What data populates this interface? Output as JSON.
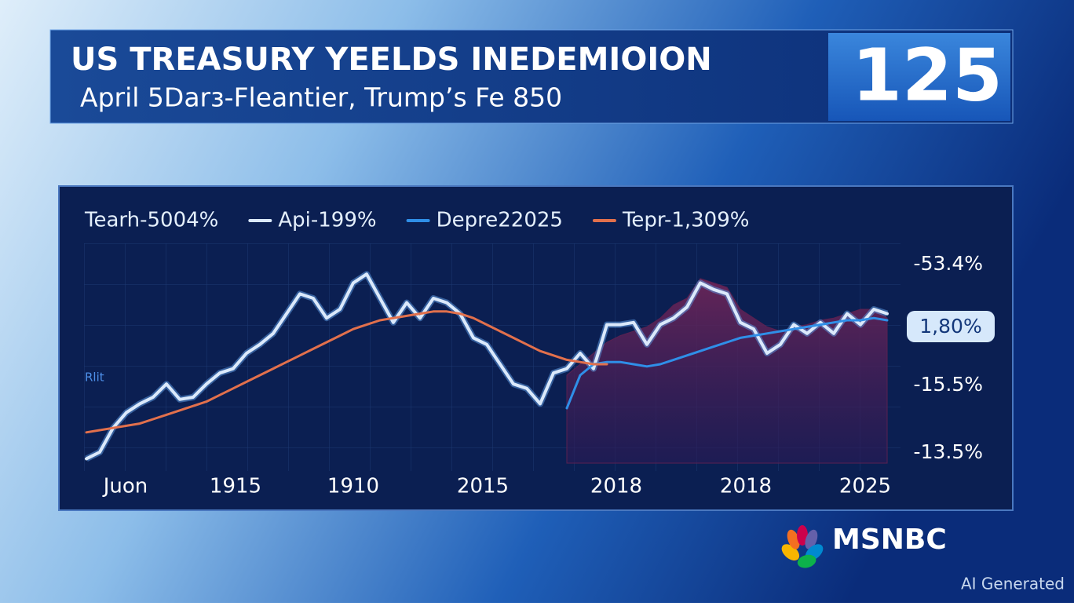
{
  "header": {
    "title": "US TREASURY YEELDS INEDEMIOION",
    "subtitle": "April 5Darɜ-Fleantier, Trump’s Fe 850",
    "badge": "125"
  },
  "chart_data": {
    "type": "line",
    "x": [
      0,
      1,
      2,
      3,
      4,
      5,
      6,
      7,
      8,
      9,
      10,
      11,
      12,
      13,
      14,
      15,
      16,
      17,
      18,
      19,
      20,
      21,
      22,
      23,
      24,
      25,
      26,
      27,
      28,
      29,
      30,
      31,
      32,
      33,
      34,
      35,
      36,
      37,
      38,
      39,
      40,
      41,
      42,
      43,
      44,
      45,
      46,
      47,
      48,
      49,
      50,
      51,
      52,
      53,
      54,
      55,
      56,
      57,
      58,
      59,
      60
    ],
    "xlim": [
      0,
      60
    ],
    "ylim": [
      0,
      100
    ],
    "x_labels": [
      "Juon",
      "1915",
      "1910",
      "2015",
      "2018",
      "2018",
      "2025"
    ],
    "y_labels": [
      "-53.4%",
      "-15.5%",
      "-13.5%"
    ],
    "callout": "1,80%",
    "side_label": "Rlit",
    "series": [
      {
        "name": "Tearh-5004%",
        "type": "area",
        "color": "#5a2150",
        "values": [
          null,
          null,
          null,
          null,
          null,
          null,
          null,
          null,
          null,
          null,
          null,
          null,
          null,
          null,
          null,
          null,
          null,
          null,
          null,
          null,
          null,
          null,
          null,
          null,
          null,
          null,
          null,
          null,
          null,
          null,
          null,
          null,
          null,
          null,
          null,
          null,
          40,
          45,
          50,
          55,
          58,
          60,
          62,
          66,
          72,
          75,
          84,
          82,
          80,
          70,
          66,
          62,
          60,
          62,
          63,
          65,
          66,
          68,
          70,
          70,
          66
        ]
      },
      {
        "name": "Api-199%",
        "type": "line",
        "color": "#dbe9fb",
        "values": [
          2,
          5,
          16,
          23,
          27,
          30,
          36,
          29,
          30,
          36,
          41,
          43,
          50,
          54,
          59,
          68,
          77,
          75,
          66,
          70,
          82,
          86,
          75,
          64,
          73,
          66,
          75,
          73,
          68,
          57,
          54,
          45,
          36,
          34,
          27,
          41,
          43,
          50,
          43,
          63,
          63,
          64,
          54,
          63,
          66,
          71,
          82,
          79,
          77,
          64,
          61,
          50,
          54,
          63,
          59,
          64,
          59,
          68,
          63,
          70,
          68
        ]
      },
      {
        "name": "Depre22025",
        "type": "line",
        "color": "#2f8fe8",
        "values": [
          null,
          null,
          null,
          null,
          null,
          null,
          null,
          null,
          null,
          null,
          null,
          null,
          null,
          null,
          null,
          null,
          null,
          null,
          null,
          null,
          null,
          null,
          null,
          null,
          null,
          null,
          null,
          null,
          null,
          null,
          null,
          null,
          null,
          null,
          null,
          null,
          25,
          40,
          45,
          46,
          46,
          45,
          44,
          45,
          47,
          49,
          51,
          53,
          55,
          57,
          58,
          59,
          60,
          61,
          62,
          63,
          64,
          65,
          65,
          66,
          65
        ]
      },
      {
        "name": "Tepr-1,309%",
        "type": "line",
        "color": "#e2704c",
        "values": [
          14,
          15,
          16,
          17,
          18,
          20,
          22,
          24,
          26,
          28,
          31,
          34,
          37,
          40,
          43,
          46,
          49,
          52,
          55,
          58,
          61,
          63,
          65,
          66,
          67,
          68,
          69,
          69,
          68,
          66,
          63,
          60,
          57,
          54,
          51,
          49,
          47,
          46,
          45,
          45,
          null,
          null,
          null,
          null,
          null,
          null,
          null,
          null,
          null,
          null,
          null,
          null,
          null,
          null,
          null,
          null,
          null,
          null,
          null,
          null,
          null
        ]
      }
    ]
  },
  "logo": "MSNBC",
  "watermark": "AI Generated"
}
